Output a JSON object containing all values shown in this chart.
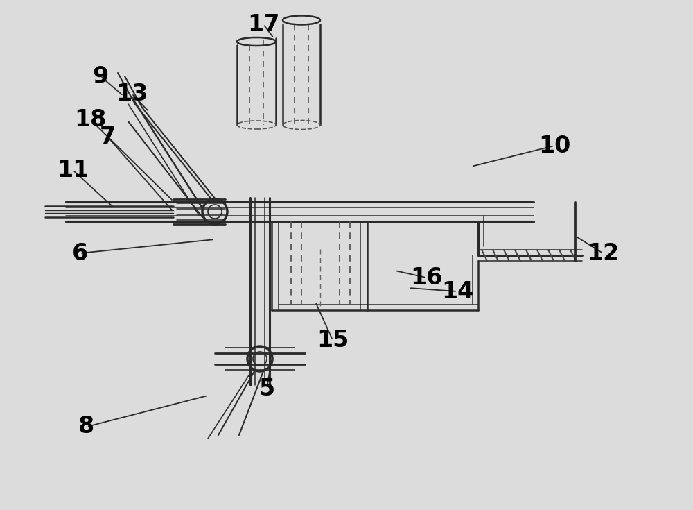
{
  "bg_color": "#dcdcdc",
  "line_color": "#2a2a2a",
  "dashed_color": "#555555",
  "label_color": "#000000",
  "figsize": [
    10.0,
    7.35
  ],
  "dpi": 100
}
